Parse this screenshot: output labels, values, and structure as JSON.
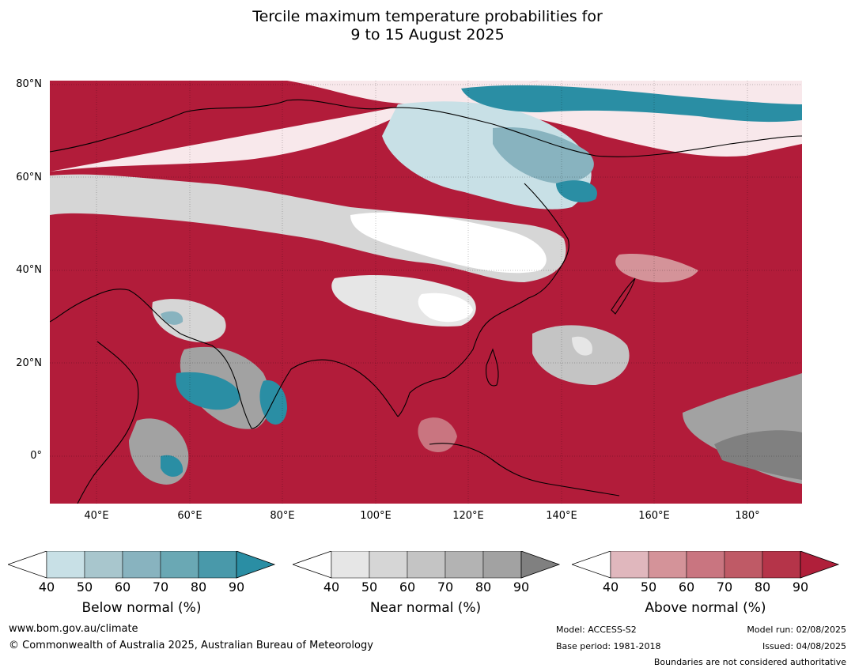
{
  "title_line1": "Tercile maximum temperature probabilities for",
  "title_line2": "9 to 15 August 2025",
  "map": {
    "lat_labels": [
      "80°N",
      "60°N",
      "40°N",
      "20°N",
      "0°"
    ],
    "lon_labels": [
      "40°E",
      "60°E",
      "80°E",
      "100°E",
      "120°E",
      "140°E",
      "160°E",
      "180°"
    ]
  },
  "colorbars": [
    {
      "title": "Below normal (%)",
      "ticks": [
        "40",
        "50",
        "60",
        "70",
        "80",
        "90"
      ],
      "colors": [
        "#c8e0e6",
        "#a8c6cd",
        "#88b3bf",
        "#6aa8b4",
        "#4999aa",
        "#2a8ea4"
      ]
    },
    {
      "title": "Near normal (%)",
      "ticks": [
        "40",
        "50",
        "60",
        "70",
        "80",
        "90"
      ],
      "colors": [
        "#e6e6e6",
        "#d6d6d6",
        "#c4c4c4",
        "#b3b3b3",
        "#a2a2a2",
        "#808080"
      ]
    },
    {
      "title": "Above normal (%)",
      "ticks": [
        "40",
        "50",
        "60",
        "70",
        "80",
        "90"
      ],
      "colors": [
        "#e0b7bd",
        "#d49399",
        "#c97580",
        "#bf5a66",
        "#b53449",
        "#b01f3a"
      ]
    }
  ],
  "footer": {
    "website": "www.bom.gov.au/climate",
    "copyright": "© Commonwealth of Australia 2025, Australian Bureau of Meteorology",
    "model": "Model: ACCESS-S2",
    "base_period": "Base period: 1981-2018",
    "model_run": "Model run: 02/08/2025",
    "issued": "Issued: 04/08/2025",
    "disclaimer": "Boundaries are not considered authoritative"
  }
}
